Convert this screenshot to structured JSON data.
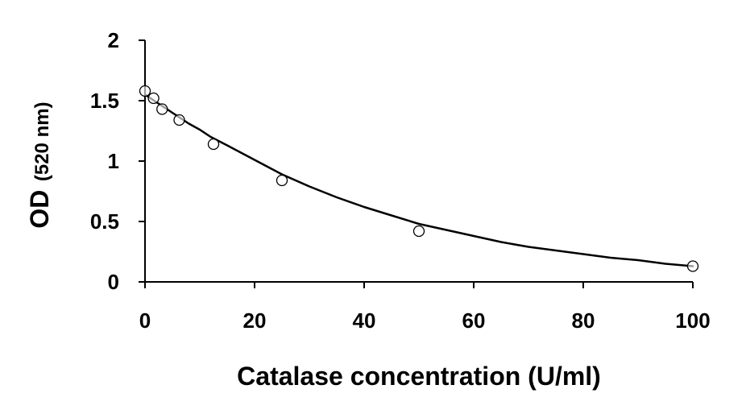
{
  "chart_data": {
    "type": "scatter",
    "title": "",
    "xlabel": "Catalase concentration (U/ml)",
    "ylabel": {
      "main": "OD",
      "unit": "(520 nm)"
    },
    "xlim": [
      0,
      100
    ],
    "ylim": [
      0,
      2
    ],
    "x_ticks": [
      0,
      20,
      40,
      60,
      80,
      100
    ],
    "y_ticks": [
      0,
      0.5,
      1,
      1.5,
      2
    ],
    "x_tick_labels": [
      "0",
      "20",
      "40",
      "60",
      "80",
      "100"
    ],
    "y_tick_labels": [
      "0",
      "0.5",
      "1",
      "1.5",
      "2"
    ],
    "grid": false,
    "legend": "none",
    "series": [
      {
        "kind": "points",
        "marker": "open-circle",
        "x": [
          0,
          1.5625,
          3.125,
          6.25,
          12.5,
          25,
          50,
          100
        ],
        "y": [
          1.58,
          1.52,
          1.43,
          1.34,
          1.14,
          0.84,
          0.42,
          0.13
        ]
      },
      {
        "kind": "fit-curve",
        "style": "solid black line",
        "x": [
          0,
          2,
          4,
          6,
          8,
          10,
          12,
          15,
          20,
          25,
          30,
          35,
          40,
          45,
          50,
          55,
          60,
          65,
          70,
          75,
          80,
          85,
          90,
          95,
          100
        ],
        "y": [
          1.55,
          1.49,
          1.43,
          1.37,
          1.31,
          1.26,
          1.2,
          1.13,
          1.01,
          0.89,
          0.79,
          0.7,
          0.62,
          0.55,
          0.48,
          0.43,
          0.38,
          0.33,
          0.29,
          0.26,
          0.23,
          0.2,
          0.18,
          0.15,
          0.13
        ]
      }
    ],
    "colors": {
      "axis": "#000000",
      "line": "#000000",
      "marker_stroke": "#000000",
      "marker_fill": "#ffffff",
      "background": "#ffffff"
    }
  }
}
